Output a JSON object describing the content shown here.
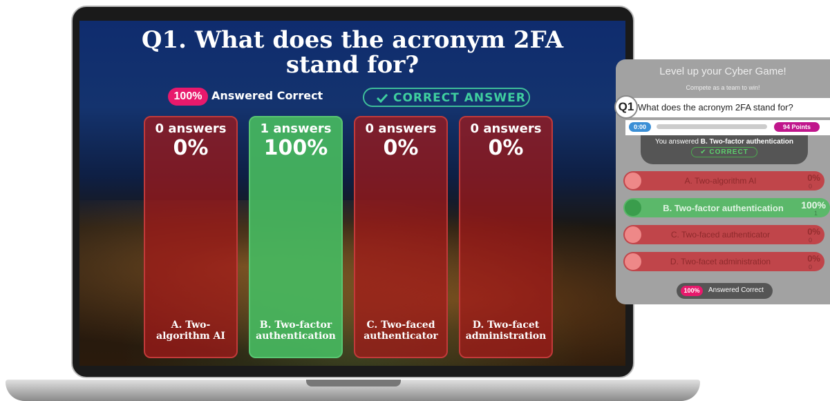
{
  "quiz": {
    "title": "Q1. What does the acronym 2FA stand for?",
    "percent_correct": "100%",
    "answered_correct": "Answered Correct",
    "correct_answer": "CORRECT ANSWER",
    "columns": [
      {
        "count": "0 answers",
        "percent": "0%",
        "label": "A. Two-algorithm AI",
        "correct": false
      },
      {
        "count": "1 answers",
        "percent": "100%",
        "label": "B. Two-factor authentication",
        "correct": true
      },
      {
        "count": "0 answers",
        "percent": "0%",
        "label": "C. Two-faced authenticator",
        "correct": false
      },
      {
        "count": "0 answers",
        "percent": "0%",
        "label": "D. Two-facet administration",
        "correct": false
      }
    ]
  },
  "panel": {
    "heading": "Level up your Cyber Game!",
    "subheading": "Compete as a team to win!",
    "question_number": "Q1",
    "question": "What does the acronym 2FA stand for?",
    "timer": "0:00",
    "points": "94 Points",
    "you_answered": "You answered",
    "answer": "B. Two-factor authentication",
    "result": "CORRECT",
    "options": [
      {
        "label": "A. Two-algorithm AI",
        "percent": "0%",
        "count": "0",
        "correct": false
      },
      {
        "label": "B. Two-factor authentication",
        "percent": "100%",
        "count": "1",
        "correct": true
      },
      {
        "label": "C. Two-faced authenticator",
        "percent": "0%",
        "count": "0",
        "correct": false
      },
      {
        "label": "D. Two-facet administration",
        "percent": "0%",
        "count": "0",
        "correct": false
      }
    ],
    "percent_correct": "100%",
    "answered_correct": "Answered Correct"
  }
}
